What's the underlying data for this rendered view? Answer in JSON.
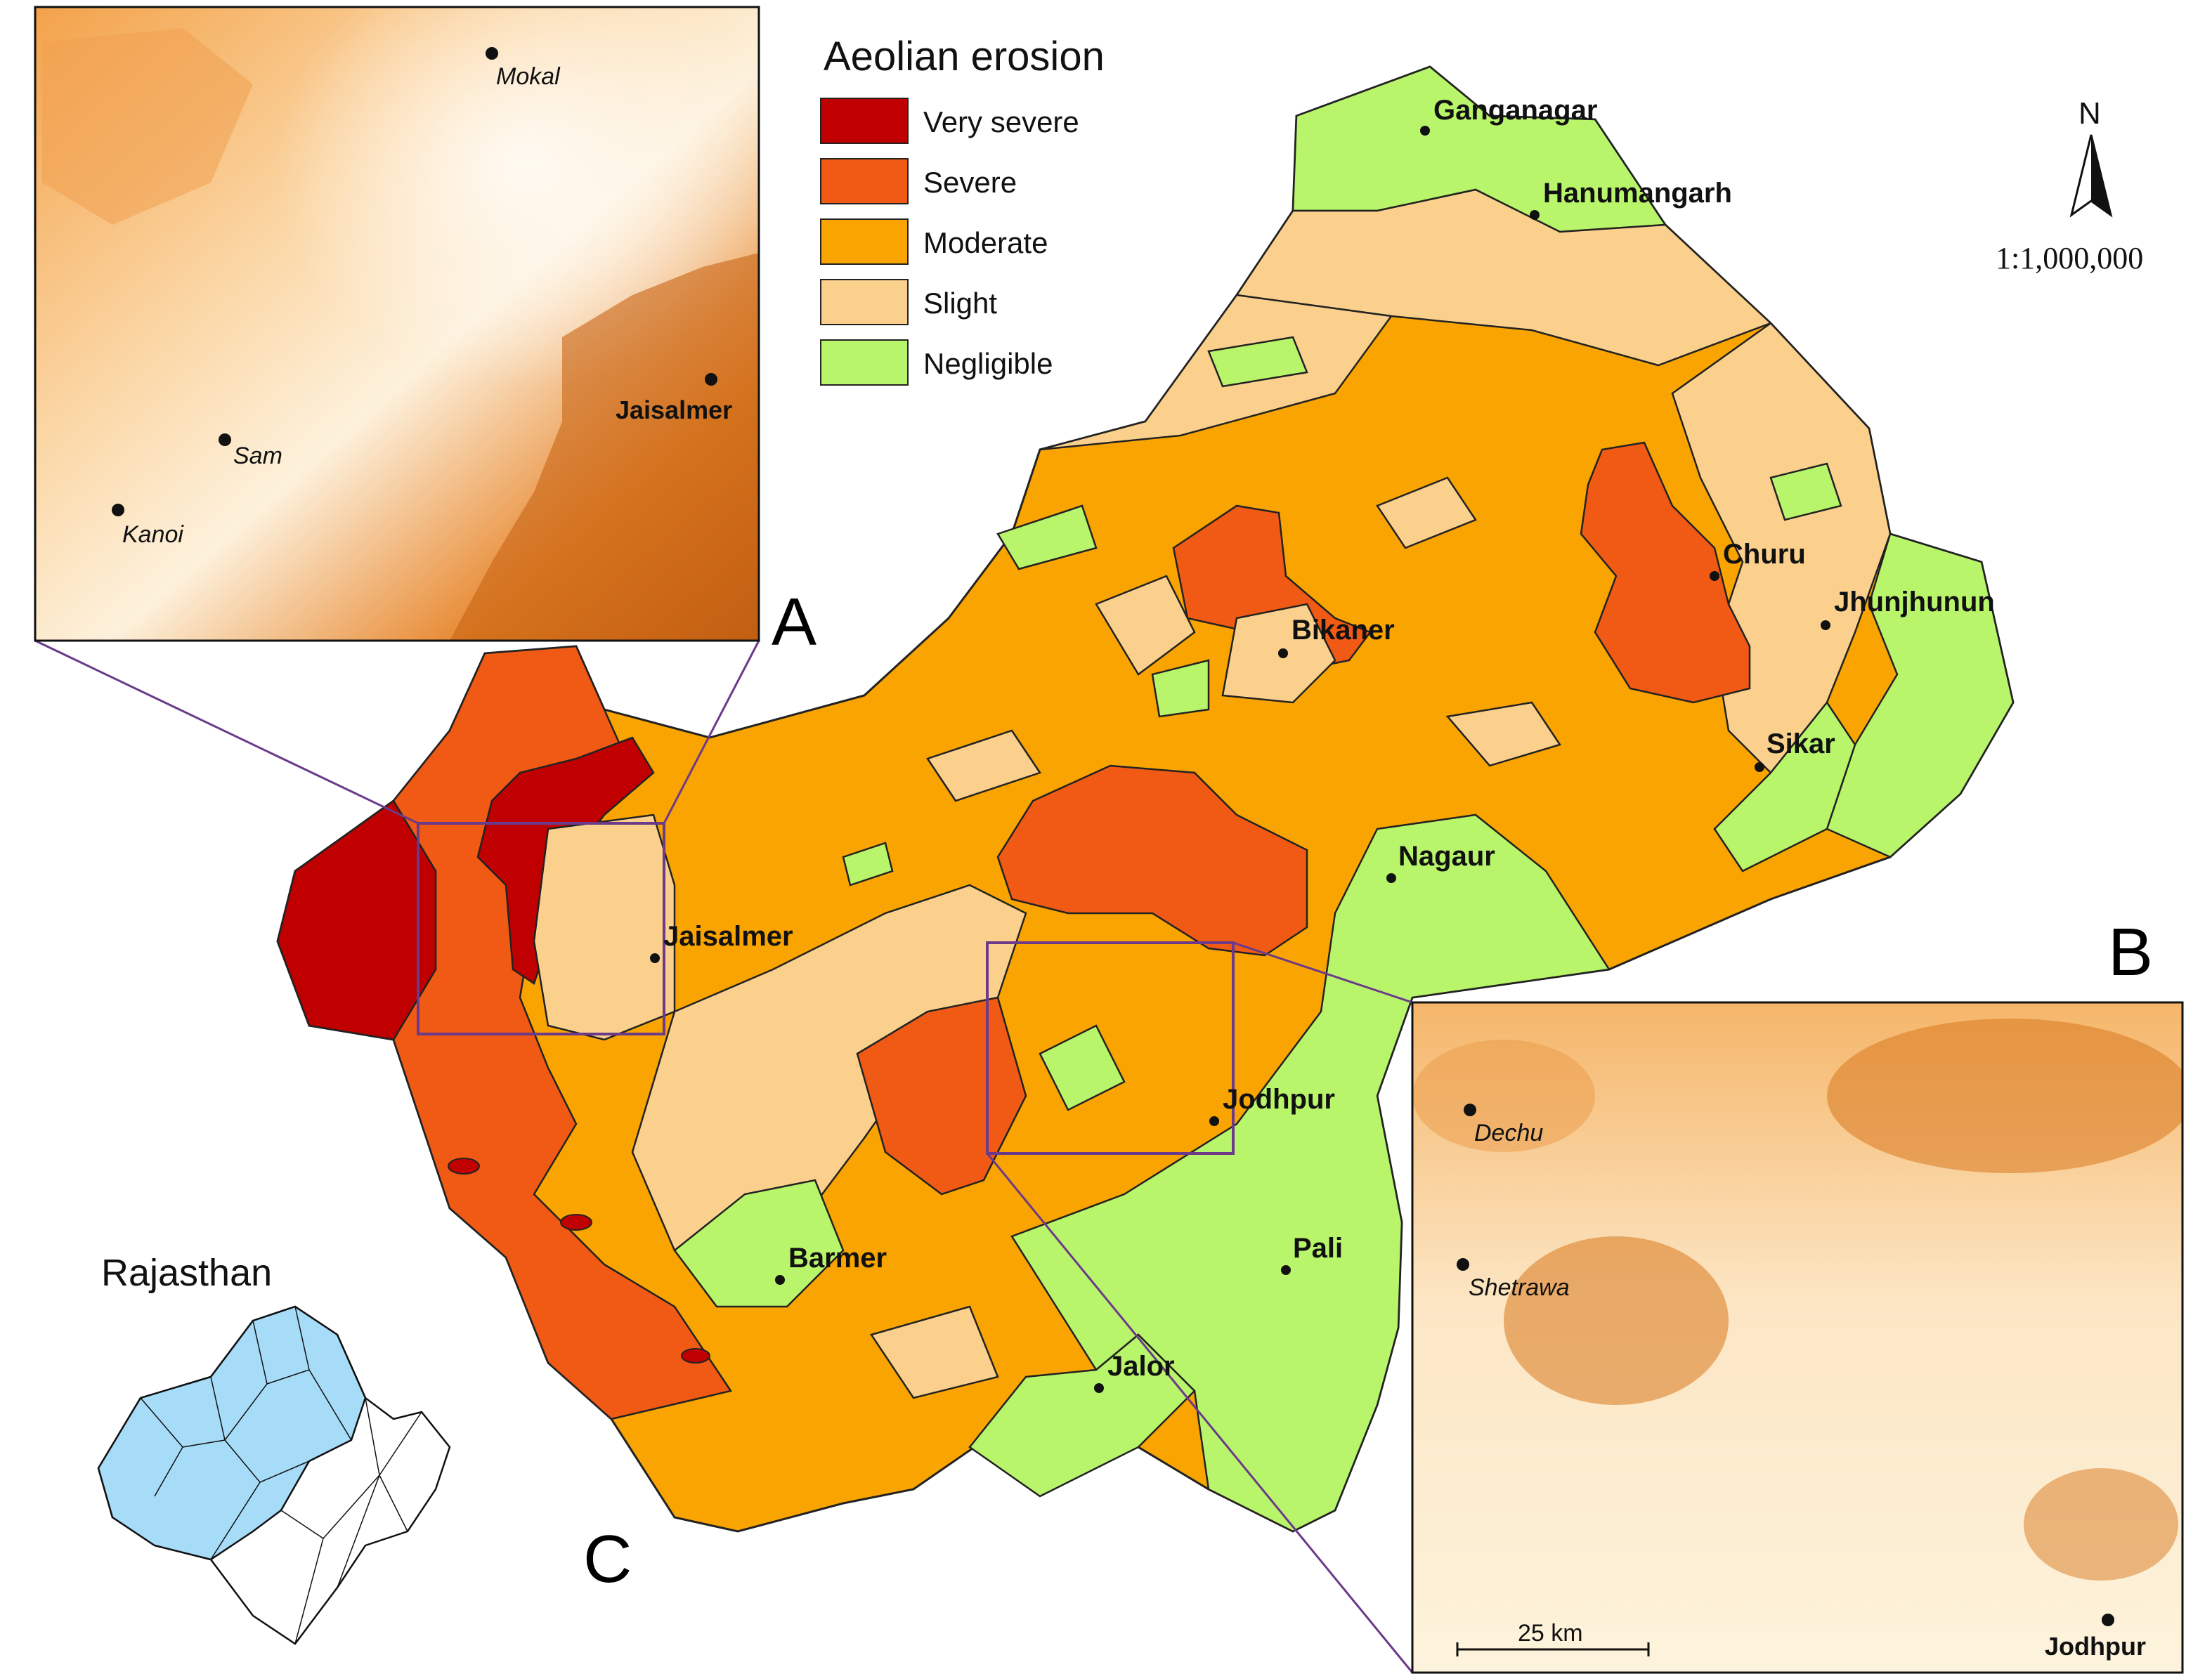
{
  "legend": {
    "title": "Aeolian erosion",
    "classes": [
      {
        "label": "Very severe",
        "color": "#c00000"
      },
      {
        "label": "Severe",
        "color": "#f05a14"
      },
      {
        "label": "Moderate",
        "color": "#f9a400"
      },
      {
        "label": "Slight",
        "color": "#fbd08c"
      },
      {
        "label": "Negligible",
        "color": "#b8f56a"
      }
    ]
  },
  "north_arrow": {
    "label": "N"
  },
  "map_scale": "1:1,000,000",
  "panel_letters": {
    "a": "A",
    "b": "B",
    "c": "C"
  },
  "cities": [
    "Ganganagar",
    "Hanumangarh",
    "Churu",
    "Jhunjhunun",
    "Bikaner",
    "Sikar",
    "Nagaur",
    "Jaisalmer",
    "Jodhpur",
    "Pali",
    "Barmer",
    "Jalor"
  ],
  "inset_a": {
    "places": [
      "Mokal",
      "Jaisalmer",
      "Sam",
      "Kanoi"
    ]
  },
  "inset_b": {
    "places": [
      "Dechu",
      "Shetrawa",
      "Jodhpur"
    ],
    "scale_bar": "25 km"
  },
  "locator": {
    "title": "Rajasthan"
  }
}
